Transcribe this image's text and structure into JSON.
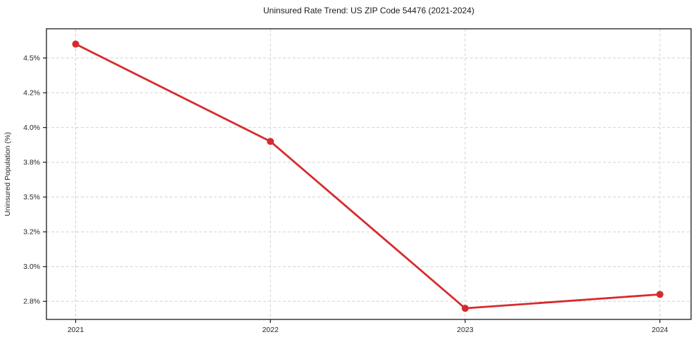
{
  "chart_data": {
    "type": "line",
    "title": "Uninsured Rate Trend: US ZIP Code 54476 (2021-2024)",
    "xlabel": "",
    "ylabel": "Uninsured Population (%)",
    "x": [
      2021,
      2022,
      2023,
      2024
    ],
    "values": [
      4.6,
      3.9,
      2.7,
      2.8
    ],
    "xlim": [
      2020.85,
      2024.16
    ],
    "ylim": [
      2.62,
      4.71
    ],
    "xticks": [
      {
        "value": 2021,
        "label": "2021"
      },
      {
        "value": 2022,
        "label": "2022"
      },
      {
        "value": 2023,
        "label": "2023"
      },
      {
        "value": 2024,
        "label": "2024"
      }
    ],
    "yticks": [
      {
        "value": 2.75,
        "label": "2.8%"
      },
      {
        "value": 3.0,
        "label": "3.0%"
      },
      {
        "value": 3.25,
        "label": "3.2%"
      },
      {
        "value": 3.5,
        "label": "3.5%"
      },
      {
        "value": 3.75,
        "label": "3.8%"
      },
      {
        "value": 4.0,
        "label": "4.0%"
      },
      {
        "value": 4.25,
        "label": "4.2%"
      },
      {
        "value": 4.5,
        "label": "4.5%"
      }
    ],
    "grid": true,
    "grid_style": "dashed",
    "legend": "none",
    "marker": "circle",
    "colors": {
      "line": "#d62b2e",
      "marker": "#d62b2e",
      "grid": "#d2d2d2",
      "spine": "#1a1a1a",
      "text": "#262626",
      "background": "#ffffff"
    }
  }
}
